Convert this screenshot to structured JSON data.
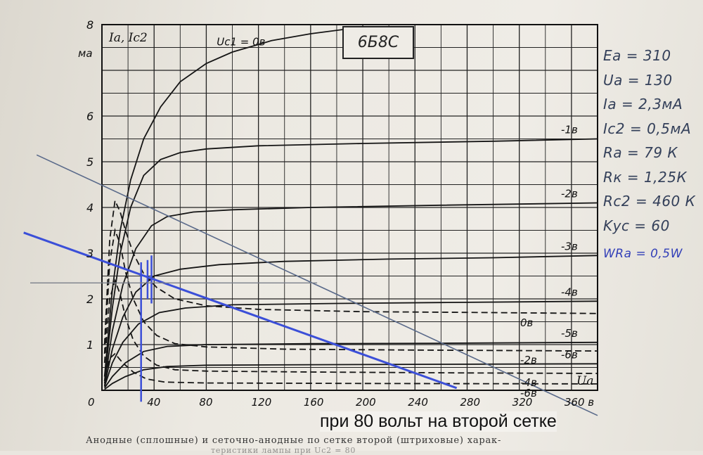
{
  "chart_data": {
    "type": "line",
    "tube_label": "6Б8С",
    "y_label": "Ia, Ic2",
    "y_unit": "ма",
    "x_label": "Ua",
    "x_unit": "в",
    "x_ticks": [
      "0",
      "40",
      "80",
      "120",
      "160",
      "200",
      "240",
      "280",
      "320",
      "360 в"
    ],
    "y_ticks": [
      "0",
      "1",
      "2",
      "3",
      "4",
      "5",
      "6",
      "8"
    ],
    "xlim": [
      0,
      380
    ],
    "ylim": [
      0,
      8
    ],
    "grid": true,
    "anode_curves": [
      {
        "label": "Uc1 = 0в",
        "points": [
          [
            2,
            0.3
          ],
          [
            8,
            2.2
          ],
          [
            14,
            3.5
          ],
          [
            22,
            4.6
          ],
          [
            32,
            5.5
          ],
          [
            45,
            6.2
          ],
          [
            60,
            6.75
          ],
          [
            80,
            7.15
          ],
          [
            100,
            7.4
          ],
          [
            130,
            7.65
          ],
          [
            160,
            7.8
          ],
          [
            200,
            7.95
          ]
        ]
      },
      {
        "label": "-1в",
        "points": [
          [
            2,
            0.2
          ],
          [
            8,
            1.8
          ],
          [
            14,
            3.0
          ],
          [
            22,
            4.0
          ],
          [
            32,
            4.7
          ],
          [
            45,
            5.05
          ],
          [
            60,
            5.2
          ],
          [
            80,
            5.28
          ],
          [
            120,
            5.35
          ],
          [
            200,
            5.4
          ],
          [
            300,
            5.45
          ],
          [
            380,
            5.5
          ]
        ]
      },
      {
        "label": "-2в",
        "points": [
          [
            2,
            0.15
          ],
          [
            8,
            1.3
          ],
          [
            16,
            2.3
          ],
          [
            26,
            3.1
          ],
          [
            38,
            3.6
          ],
          [
            50,
            3.8
          ],
          [
            70,
            3.9
          ],
          [
            100,
            3.95
          ],
          [
            160,
            4.0
          ],
          [
            260,
            4.05
          ],
          [
            380,
            4.1
          ]
        ]
      },
      {
        "label": "-3в",
        "points": [
          [
            2,
            0.1
          ],
          [
            8,
            0.9
          ],
          [
            16,
            1.6
          ],
          [
            26,
            2.15
          ],
          [
            40,
            2.5
          ],
          [
            60,
            2.65
          ],
          [
            90,
            2.75
          ],
          [
            140,
            2.82
          ],
          [
            220,
            2.87
          ],
          [
            300,
            2.9
          ],
          [
            380,
            2.95
          ]
        ]
      },
      {
        "label": "-4в",
        "points": [
          [
            2,
            0.08
          ],
          [
            8,
            0.6
          ],
          [
            16,
            1.05
          ],
          [
            28,
            1.45
          ],
          [
            44,
            1.7
          ],
          [
            64,
            1.8
          ],
          [
            100,
            1.87
          ],
          [
            180,
            1.9
          ],
          [
            260,
            1.92
          ],
          [
            380,
            1.95
          ]
        ]
      },
      {
        "label": "-5в",
        "points": [
          [
            2,
            0.05
          ],
          [
            8,
            0.3
          ],
          [
            18,
            0.6
          ],
          [
            32,
            0.85
          ],
          [
            50,
            0.96
          ],
          [
            80,
            1.0
          ],
          [
            160,
            1.02
          ],
          [
            260,
            1.03
          ],
          [
            380,
            1.05
          ]
        ]
      },
      {
        "label": "-6в",
        "points": [
          [
            2,
            0.02
          ],
          [
            8,
            0.15
          ],
          [
            18,
            0.3
          ],
          [
            32,
            0.45
          ],
          [
            50,
            0.52
          ],
          [
            80,
            0.55
          ],
          [
            160,
            0.56
          ],
          [
            260,
            0.57
          ],
          [
            380,
            0.58
          ]
        ]
      }
    ],
    "screen_curves": [
      {
        "label": "0в",
        "points": [
          [
            2,
            1.0
          ],
          [
            6,
            3.3
          ],
          [
            10,
            4.15
          ],
          [
            14,
            3.9
          ],
          [
            18,
            3.5
          ],
          [
            24,
            3.0
          ],
          [
            32,
            2.55
          ],
          [
            42,
            2.25
          ],
          [
            56,
            2.0
          ],
          [
            80,
            1.85
          ],
          [
            120,
            1.77
          ],
          [
            200,
            1.72
          ],
          [
            300,
            1.7
          ],
          [
            380,
            1.68
          ]
        ]
      },
      {
        "label": "-2в",
        "points": [
          [
            2,
            0.8
          ],
          [
            6,
            2.8
          ],
          [
            10,
            3.5
          ],
          [
            14,
            3.2
          ],
          [
            18,
            2.6
          ],
          [
            24,
            2.0
          ],
          [
            32,
            1.5
          ],
          [
            42,
            1.2
          ],
          [
            56,
            1.02
          ],
          [
            80,
            0.95
          ],
          [
            140,
            0.9
          ],
          [
            240,
            0.88
          ],
          [
            380,
            0.86
          ]
        ]
      },
      {
        "label": "-4в",
        "points": [
          [
            2,
            0.6
          ],
          [
            6,
            2.0
          ],
          [
            10,
            2.4
          ],
          [
            14,
            2.1
          ],
          [
            18,
            1.6
          ],
          [
            24,
            1.1
          ],
          [
            32,
            0.75
          ],
          [
            42,
            0.55
          ],
          [
            56,
            0.45
          ],
          [
            80,
            0.42
          ],
          [
            160,
            0.4
          ],
          [
            280,
            0.38
          ],
          [
            380,
            0.37
          ]
        ]
      },
      {
        "label": "-6в",
        "points": [
          [
            2,
            0.3
          ],
          [
            6,
            0.7
          ],
          [
            10,
            0.8
          ],
          [
            16,
            0.6
          ],
          [
            24,
            0.4
          ],
          [
            34,
            0.25
          ],
          [
            48,
            0.18
          ],
          [
            80,
            0.16
          ],
          [
            200,
            0.15
          ],
          [
            380,
            0.14
          ]
        ]
      }
    ],
    "load_lines": [
      {
        "color": "#5a6a8a",
        "points": [
          [
            -50,
            5.15
          ],
          [
            380,
            -0.55
          ]
        ]
      },
      {
        "color": "#3b4fd8",
        "points": [
          [
            -60,
            3.45
          ],
          [
            272,
            0.05
          ]
        ]
      }
    ],
    "blue_marks": [
      {
        "color": "#3b4fd8",
        "points": [
          [
            30,
            -0.25
          ],
          [
            30,
            2.8
          ]
        ]
      },
      {
        "color": "#3b4fd8",
        "points": [
          [
            35,
            2.0
          ],
          [
            35,
            2.85
          ]
        ]
      },
      {
        "color": "#3b4fd8",
        "points": [
          [
            38,
            1.9
          ],
          [
            38,
            2.95
          ]
        ]
      }
    ],
    "guide_line": {
      "color": "#7a7f8a",
      "points": [
        [
          -55,
          2.35
        ],
        [
          165,
          2.35
        ]
      ]
    }
  },
  "notes": {
    "lines": [
      "Eа = 310",
      "Uа = 130",
      "Iа = 2,3мА",
      "Ic2 = 0,5мА",
      "Rа = 79 К",
      "Rк = 1,25К",
      "Rc2 = 460 К",
      "Kус = 60"
    ],
    "blue_line": "WRa = 0,5W"
  },
  "caption_overlay": "при 80 вольт на второй сетке",
  "caption_original": "Анодные (сплошные) и сеточно-анодные по сетке второй (штриховые) харак-",
  "caption_original_2": "теристики лампы при Uс2 = 80"
}
